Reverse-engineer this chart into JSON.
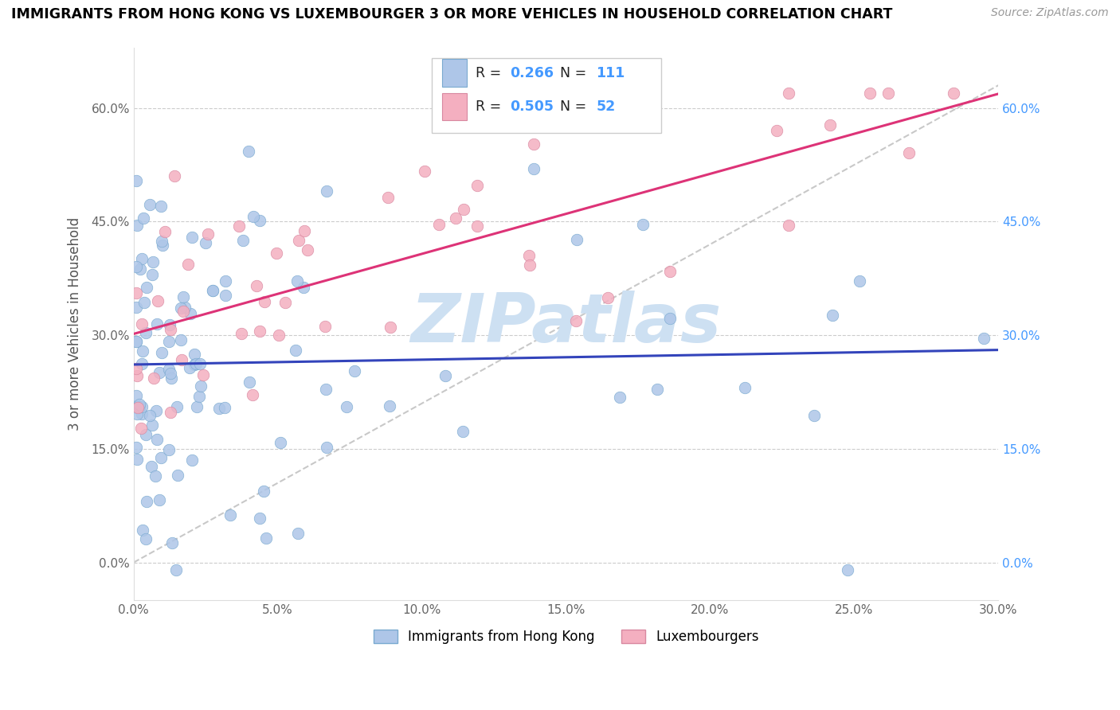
{
  "title": "IMMIGRANTS FROM HONG KONG VS LUXEMBOURGER 3 OR MORE VEHICLES IN HOUSEHOLD CORRELATION CHART",
  "source": "Source: ZipAtlas.com",
  "ylabel_label": "3 or more Vehicles in Household",
  "legend_label1": "Immigrants from Hong Kong",
  "legend_label2": "Luxembourgers",
  "R1": 0.266,
  "N1": 111,
  "R2": 0.505,
  "N2": 52,
  "color1_face": "#aec6e8",
  "color1_edge": "#7aaad0",
  "color2_face": "#f4afc0",
  "color2_edge": "#d888a0",
  "line_color1": "#3344bb",
  "line_color2": "#dd3377",
  "dash_color": "#bbbbbb",
  "watermark_text": "ZIPatlas",
  "watermark_color": "#cde0f2",
  "right_tick_color": "#4499ff",
  "xmin": 0.0,
  "xmax": 0.3,
  "ymin": -0.05,
  "ymax": 0.68,
  "x_ticks": [
    0.0,
    0.05,
    0.1,
    0.15,
    0.2,
    0.25,
    0.3
  ],
  "y_ticks": [
    0.0,
    0.15,
    0.3,
    0.45,
    0.6
  ],
  "title_fontsize": 12.5,
  "source_fontsize": 10,
  "tick_fontsize": 11,
  "ylabel_fontsize": 12
}
